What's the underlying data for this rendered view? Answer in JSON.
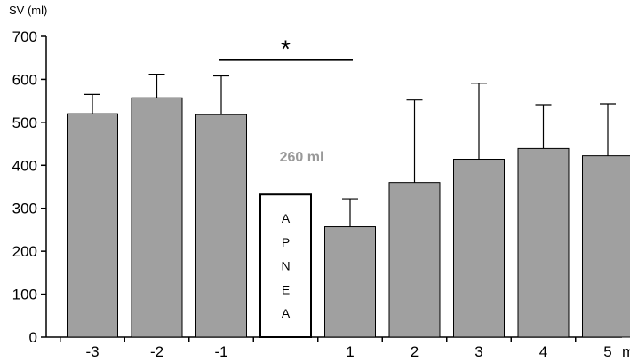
{
  "chart_data": {
    "type": "bar",
    "ylabel": "SV (ml)",
    "ylim": [
      0,
      700
    ],
    "yticks": [
      0,
      100,
      200,
      300,
      400,
      500,
      600,
      700
    ],
    "x_unit": "min",
    "categories": [
      "-3",
      "-2",
      "-1",
      "APNEA",
      "1",
      "2",
      "3",
      "4",
      "5"
    ],
    "values": [
      520,
      557,
      518,
      332,
      257,
      360,
      414,
      439,
      422
    ],
    "error_plus": [
      45,
      55,
      90,
      null,
      65,
      192,
      177,
      102,
      121
    ],
    "bar_color": "#a0a0a0",
    "apnea_bar": {
      "label": "APNEA",
      "letters": [
        "A",
        "P",
        "N",
        "E",
        "A"
      ],
      "fill": "#ffffff"
    },
    "annotations": {
      "significance_symbol": "*",
      "significance_span": [
        "-1",
        "1"
      ],
      "significance_level": 645,
      "gray_label": "260 ml",
      "gray_label_color": "#999999"
    },
    "grid": false,
    "legend": "none"
  }
}
